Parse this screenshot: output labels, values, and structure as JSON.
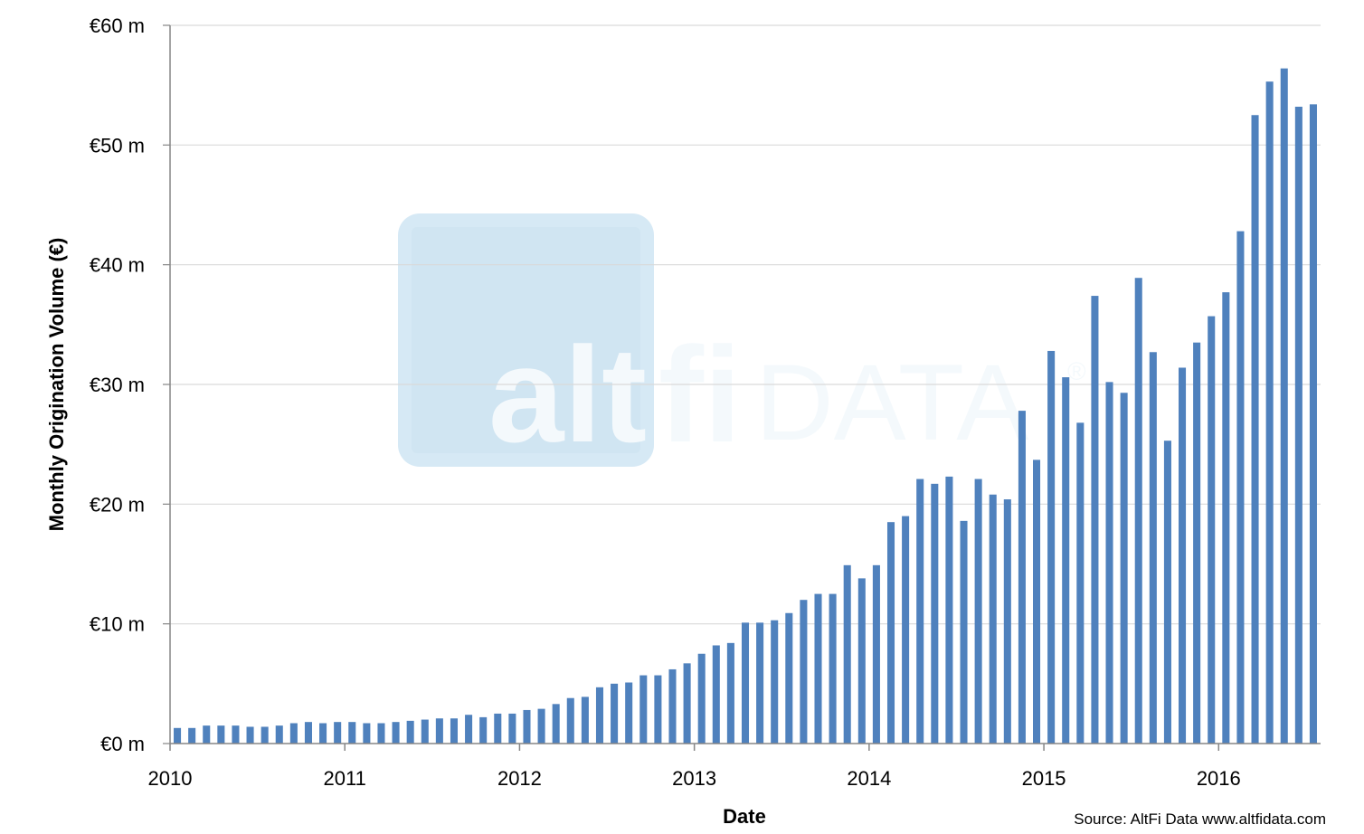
{
  "colors": {
    "bar": "#4f81bd",
    "grid": "#d9d9d9",
    "axis": "#868686",
    "watermark_box": "#d6e9f5",
    "watermark_text": "#f4f9fc"
  },
  "watermark": {
    "alt": "alt",
    "fi": "fi",
    "data": "DATA",
    "registered": "®"
  },
  "chart_data": {
    "type": "bar",
    "title": "",
    "xlabel": "Date",
    "ylabel": "Monthly Origination Volume (€)",
    "source": "Source: AltFi Data www.altfidata.com",
    "ylim": [
      0,
      60
    ],
    "y_unit": "€ million",
    "y_ticks": [
      0,
      10,
      20,
      30,
      40,
      50,
      60
    ],
    "y_tick_labels": [
      "€0 m",
      "€10 m",
      "€20 m",
      "€30 m",
      "€40 m",
      "€50 m",
      "€60 m"
    ],
    "x_tick_labels": [
      "2010",
      "2011",
      "2012",
      "2013",
      "2014",
      "2015",
      "2016"
    ],
    "grid": true,
    "legend": "none",
    "categories": [
      "2010-01",
      "2010-02",
      "2010-03",
      "2010-04",
      "2010-05",
      "2010-06",
      "2010-07",
      "2010-08",
      "2010-09",
      "2010-10",
      "2010-11",
      "2010-12",
      "2011-01",
      "2011-02",
      "2011-03",
      "2011-04",
      "2011-05",
      "2011-06",
      "2011-07",
      "2011-08",
      "2011-09",
      "2011-10",
      "2011-11",
      "2011-12",
      "2012-01",
      "2012-02",
      "2012-03",
      "2012-04",
      "2012-05",
      "2012-06",
      "2012-07",
      "2012-08",
      "2012-09",
      "2012-10",
      "2012-11",
      "2012-12",
      "2013-01",
      "2013-02",
      "2013-03",
      "2013-04",
      "2013-05",
      "2013-06",
      "2013-07",
      "2013-08",
      "2013-09",
      "2013-10",
      "2013-11",
      "2013-12",
      "2014-01",
      "2014-02",
      "2014-03",
      "2014-04",
      "2014-05",
      "2014-06",
      "2014-07",
      "2014-08",
      "2014-09",
      "2014-10",
      "2014-11",
      "2014-12",
      "2015-01",
      "2015-02",
      "2015-03",
      "2015-04",
      "2015-05",
      "2015-06",
      "2015-07",
      "2015-08",
      "2015-09",
      "2015-10",
      "2015-11",
      "2015-12",
      "2016-01",
      "2016-02",
      "2016-03",
      "2016-04",
      "2016-05",
      "2016-06",
      "2016-07"
    ],
    "values": [
      1.3,
      1.3,
      1.5,
      1.5,
      1.5,
      1.4,
      1.4,
      1.5,
      1.7,
      1.8,
      1.7,
      1.8,
      1.8,
      1.7,
      1.7,
      1.8,
      1.9,
      2.0,
      2.1,
      2.1,
      2.4,
      2.2,
      2.5,
      2.5,
      2.8,
      2.9,
      3.3,
      3.8,
      3.9,
      4.7,
      5.0,
      5.1,
      5.7,
      5.7,
      6.2,
      6.7,
      7.5,
      8.2,
      8.4,
      10.1,
      10.1,
      10.3,
      10.9,
      12.0,
      12.5,
      12.5,
      14.9,
      13.8,
      14.9,
      18.5,
      19.0,
      22.1,
      21.7,
      22.3,
      18.6,
      22.1,
      20.8,
      20.4,
      27.8,
      23.7,
      32.8,
      30.6,
      26.8,
      37.4,
      30.2,
      29.3,
      38.9,
      32.7,
      25.3,
      31.4,
      33.5,
      35.7,
      37.7,
      42.8,
      52.5,
      55.3,
      56.4,
      53.2,
      53.4
    ]
  }
}
